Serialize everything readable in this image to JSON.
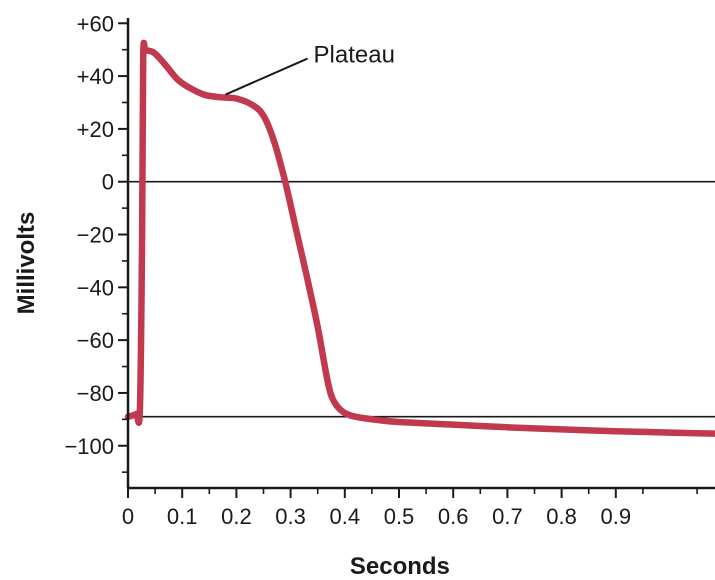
{
  "chart_data": {
    "type": "line",
    "title": "",
    "xlabel": "Seconds",
    "ylabel": "Millivolts",
    "xlim": [
      0,
      1.1
    ],
    "ylim": [
      -116,
      62
    ],
    "x_ticks": [
      0,
      0.1,
      0.2,
      0.3,
      0.4,
      0.5,
      0.6,
      0.7,
      0.8,
      0.9
    ],
    "x_tick_labels": [
      "0",
      "0.1",
      "0.2",
      "0.3",
      "0.4",
      "0.5",
      "0.6",
      "0.7",
      "0.8",
      "0.9"
    ],
    "y_ticks": [
      60,
      40,
      20,
      0,
      -20,
      -40,
      -60,
      -80,
      -100
    ],
    "y_tick_labels": [
      "+60",
      "+40",
      "+20",
      "0",
      "−20",
      "−40",
      "−60",
      "−80",
      "−100"
    ],
    "reference_lines": [
      0,
      -89
    ],
    "line_color": "#c0394f",
    "series": [
      {
        "x": [
          0.0,
          0.015,
          0.022,
          0.026,
          0.028,
          0.032,
          0.04,
          0.05,
          0.07,
          0.09,
          0.11,
          0.14,
          0.17,
          0.2,
          0.23,
          0.25,
          0.27,
          0.29,
          0.31,
          0.33,
          0.35,
          0.365,
          0.375,
          0.39,
          0.41,
          0.45,
          0.5,
          0.6,
          0.7,
          0.8,
          0.9,
          1.0,
          1.1
        ],
        "y": [
          -89,
          -88,
          -86,
          -20,
          47,
          49.5,
          49.5,
          48.5,
          44,
          39,
          36,
          33,
          32,
          31.5,
          29,
          25,
          15,
          0,
          -18,
          -36,
          -55,
          -72,
          -81,
          -86,
          -88.5,
          -90,
          -91,
          -92,
          -93,
          -93.8,
          -94.5,
          -95,
          -95.5
        ]
      }
    ],
    "annotations": [
      {
        "text": "Plateau",
        "x": 0.18,
        "y": 33
      }
    ]
  }
}
